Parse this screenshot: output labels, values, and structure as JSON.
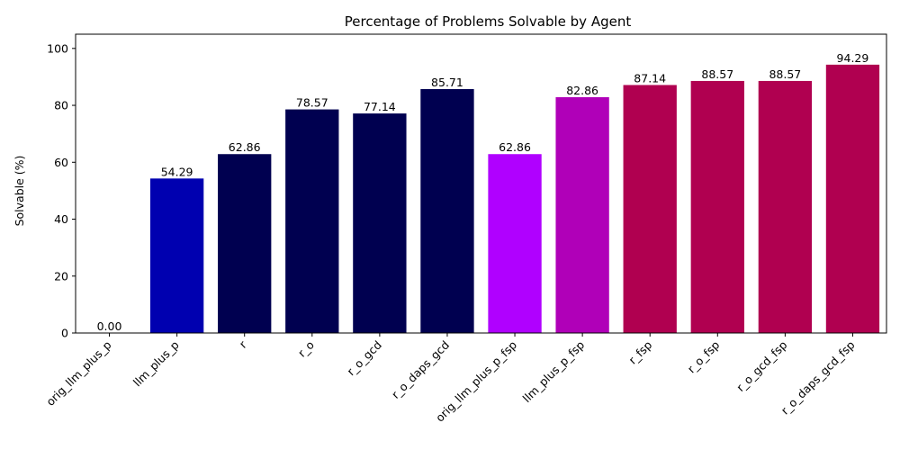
{
  "chart_data": {
    "type": "bar",
    "title": "Percentage of Problems Solvable by Agent",
    "xlabel": "",
    "ylabel": "Solvable (%)",
    "ylim": [
      0,
      105
    ],
    "yticks": [
      0,
      20,
      40,
      60,
      80,
      100
    ],
    "grid": false,
    "categories": [
      "orig_llm_plus_p",
      "llm_plus_p",
      "r",
      "r_o",
      "r_o_gcd",
      "r_o_daps_gcd",
      "orig_llm_plus_p_fsp",
      "llm_plus_p_fsp",
      "r_fsp",
      "r_o_fsp",
      "r_o_gcd_fsp",
      "r_o_daps_gcd_fsp"
    ],
    "values": [
      0.0,
      54.29,
      62.86,
      78.57,
      77.14,
      85.71,
      62.86,
      82.86,
      87.14,
      88.57,
      88.57,
      94.29
    ],
    "value_labels": [
      "0.00",
      "54.29",
      "62.86",
      "78.57",
      "77.14",
      "85.71",
      "62.86",
      "82.86",
      "87.14",
      "88.57",
      "88.57",
      "94.29"
    ],
    "colors": [
      "#0000cc",
      "#0000b0",
      "#000050",
      "#000050",
      "#000050",
      "#000050",
      "#b000ff",
      "#b000b8",
      "#b00050",
      "#b00050",
      "#b00050",
      "#b00050"
    ]
  }
}
